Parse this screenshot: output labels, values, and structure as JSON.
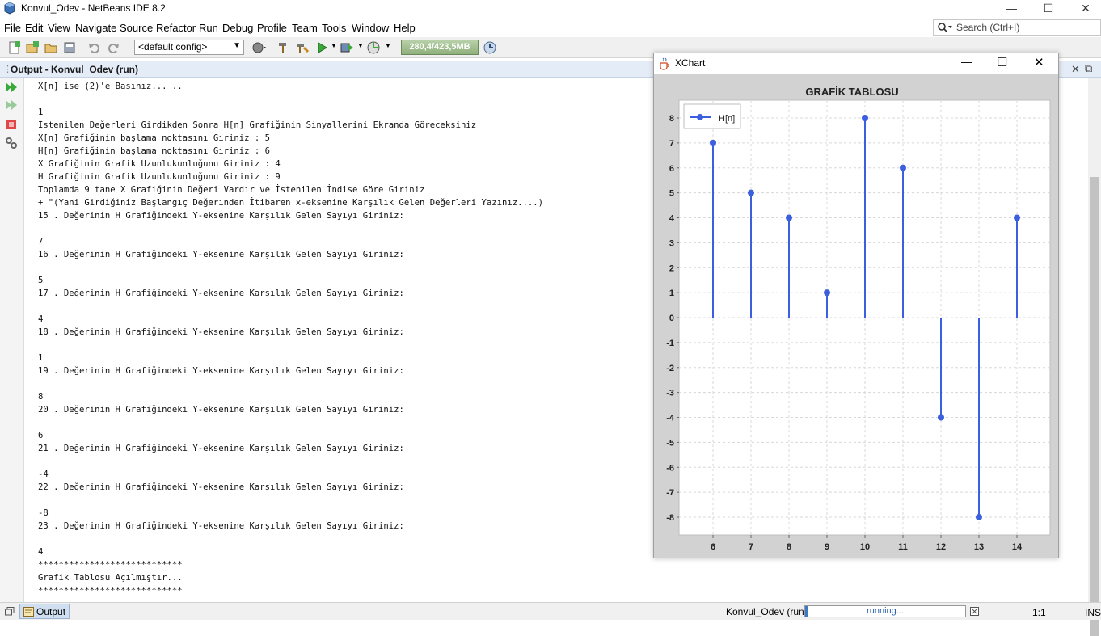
{
  "window": {
    "title": "Konvul_Odev - NetBeans IDE 8.2"
  },
  "menu": [
    "File",
    "Edit",
    "View",
    "Navigate",
    "Source",
    "Refactor",
    "Run",
    "Debug",
    "Profile",
    "Team",
    "Tools",
    "Window",
    "Help"
  ],
  "search": {
    "placeholder": "Search (Ctrl+I)"
  },
  "toolbar": {
    "config": "<default config>",
    "memory": "280,4/423,5MB"
  },
  "output": {
    "title": "Output - Konvul_Odev (run)",
    "lines": [
      "X[n] ise (2)'e Basınız... ..",
      "",
      "1",
      "İstenilen Değerleri Girdikden Sonra H[n] Grafiğinin Sinyallerini Ekranda Göreceksiniz",
      "X[n] Grafiğinin başlama noktasını Giriniz : 5",
      "H[n] Grafiğinin başlama noktasını Giriniz : 6",
      "X Grafiğinin Grafik Uzunlukunluğunu Giriniz : 4",
      "H Grafiğinin Grafik Uzunlukunluğunu Giriniz : 9",
      "Toplamda 9 tane X Grafiğinin Değeri Vardır ve İstenilen İndise Göre Giriniz",
      "+ \"(Yani Girdiğiniz Başlangıç Değerinden İtibaren x-eksenine Karşılık Gelen Değerleri Yazınız....)",
      "15 . Değerinin H Grafiğindeki Y-eksenine Karşılık Gelen Sayıyı Giriniz:",
      "",
      "7",
      "16 . Değerinin H Grafiğindeki Y-eksenine Karşılık Gelen Sayıyı Giriniz:",
      "",
      "5",
      "17 . Değerinin H Grafiğindeki Y-eksenine Karşılık Gelen Sayıyı Giriniz:",
      "",
      "4",
      "18 . Değerinin H Grafiğindeki Y-eksenine Karşılık Gelen Sayıyı Giriniz:",
      "",
      "1",
      "19 . Değerinin H Grafiğindeki Y-eksenine Karşılık Gelen Sayıyı Giriniz:",
      "",
      "8",
      "20 . Değerinin H Grafiğindeki Y-eksenine Karşılık Gelen Sayıyı Giriniz:",
      "",
      "6",
      "21 . Değerinin H Grafiğindeki Y-eksenine Karşılık Gelen Sayıyı Giriniz:",
      "",
      "-4",
      "22 . Değerinin H Grafiğindeki Y-eksenine Karşılık Gelen Sayıyı Giriniz:",
      "",
      "-8",
      "23 . Değerinin H Grafiğindeki Y-eksenine Karşılık Gelen Sayıyı Giriniz:",
      "",
      "4",
      "****************************",
      "Grafik Tablosu Açılmıştır...",
      "****************************"
    ]
  },
  "status": {
    "output_tab": "Output",
    "project": "Konvul_Odev (run)",
    "progress": "running...",
    "position": "1:1",
    "mode": "INS"
  },
  "xchart_window": {
    "title": "XChart"
  },
  "colors": {
    "series": "#3c5fe0",
    "accent": "#2a62b0"
  },
  "chart_data": {
    "type": "stem",
    "title": "GRAFİK TABLOSU",
    "legend": {
      "entries": [
        "H[n]"
      ],
      "position": "top-left"
    },
    "x": [
      6,
      7,
      8,
      9,
      10,
      11,
      12,
      13,
      14
    ],
    "series": [
      {
        "name": "H[n]",
        "values": [
          7,
          5,
          4,
          1,
          8,
          6,
          -4,
          -8,
          4
        ]
      }
    ],
    "xticks": [
      "6",
      "7",
      "8",
      "9",
      "10",
      "11",
      "12",
      "13",
      "14"
    ],
    "yticks": [
      "8",
      "7",
      "6",
      "5",
      "4",
      "3",
      "2",
      "1",
      "0",
      "-1",
      "-2",
      "-3",
      "-4",
      "-5",
      "-6",
      "-7",
      "-8"
    ],
    "ylim": [
      -8,
      8
    ],
    "grid": true
  }
}
